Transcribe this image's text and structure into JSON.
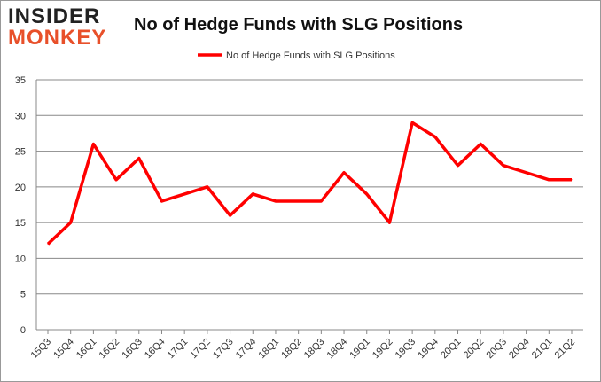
{
  "logo": {
    "line1": "INSIDER",
    "line2": "MONKEY"
  },
  "chart_data": {
    "type": "line",
    "title": "No of Hedge Funds with SLG Positions",
    "categories": [
      "15Q3",
      "15Q4",
      "16Q1",
      "16Q2",
      "16Q3",
      "16Q4",
      "17Q1",
      "17Q2",
      "17Q3",
      "17Q4",
      "18Q1",
      "18Q2",
      "18Q3",
      "18Q4",
      "19Q1",
      "19Q2",
      "19Q3",
      "19Q4",
      "20Q1",
      "20Q2",
      "20Q3",
      "20Q4",
      "21Q1",
      "21Q2"
    ],
    "series": [
      {
        "name": "No of Hedge Funds with SLG Positions",
        "color": "#ff0000",
        "values": [
          12,
          15,
          26,
          21,
          24,
          18,
          19,
          20,
          16,
          19,
          18,
          18,
          18,
          22,
          19,
          15,
          29,
          27,
          23,
          26,
          23,
          22,
          21,
          21
        ]
      }
    ],
    "ylim": [
      0,
      35
    ],
    "yticks": [
      0,
      5,
      10,
      15,
      20,
      25,
      30,
      35
    ],
    "grid": true,
    "legend": "top-center"
  }
}
